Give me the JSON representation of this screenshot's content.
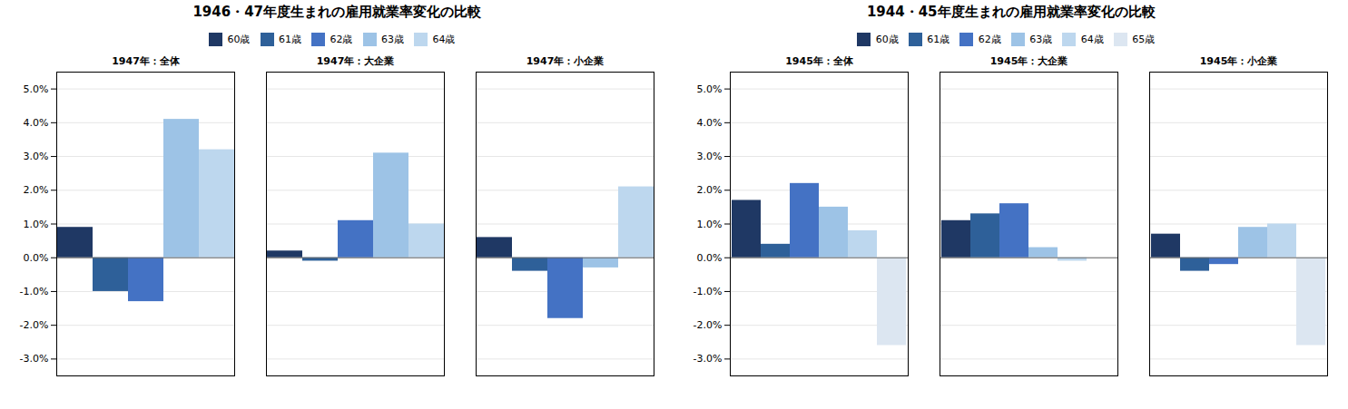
{
  "chart_data": [
    {
      "type": "bar",
      "title": "1946・47年度生まれの雇用就業率変化の比較",
      "categories": [
        "1947年：全体",
        "1947年：大企業",
        "1947年：小企業"
      ],
      "series": [
        {
          "name": "60歳",
          "color": "#1f3864",
          "values": [
            0.009,
            0.002,
            0.006
          ]
        },
        {
          "name": "61歳",
          "color": "#2e6099",
          "values": [
            -0.01,
            -0.001,
            -0.004
          ]
        },
        {
          "name": "62歳",
          "color": "#4472c4",
          "values": [
            -0.013,
            0.011,
            -0.018
          ]
        },
        {
          "name": "63歳",
          "color": "#9dc3e6",
          "values": [
            0.041,
            0.031,
            -0.003
          ]
        },
        {
          "name": "64歳",
          "color": "#bdd7ee",
          "values": [
            0.032,
            0.01,
            0.021
          ]
        }
      ],
      "ylim": [
        -0.035,
        0.055
      ],
      "yticks": [
        {
          "value": -0.03,
          "label": "-3.0%"
        },
        {
          "value": -0.02,
          "label": "-2.0%"
        },
        {
          "value": -0.01,
          "label": "-1.0%"
        },
        {
          "value": 0.0,
          "label": "0.0%"
        },
        {
          "value": 0.01,
          "label": "1.0%"
        },
        {
          "value": 0.02,
          "label": "2.0%"
        },
        {
          "value": 0.03,
          "label": "3.0%"
        },
        {
          "value": 0.04,
          "label": "4.0%"
        },
        {
          "value": 0.05,
          "label": "5.0%"
        }
      ],
      "grid": true,
      "legend": "top"
    },
    {
      "type": "bar",
      "title": "1944・45年度生まれの雇用就業率変化の比較",
      "categories": [
        "1945年：全体",
        "1945年：大企業",
        "1945年：小企業"
      ],
      "series": [
        {
          "name": "60歳",
          "color": "#1f3864",
          "values": [
            0.017,
            0.011,
            0.007
          ]
        },
        {
          "name": "61歳",
          "color": "#2e6099",
          "values": [
            0.004,
            0.013,
            -0.004
          ]
        },
        {
          "name": "62歳",
          "color": "#4472c4",
          "values": [
            0.022,
            0.016,
            -0.002
          ]
        },
        {
          "name": "63歳",
          "color": "#9dc3e6",
          "values": [
            0.015,
            0.003,
            0.009
          ]
        },
        {
          "name": "64歳",
          "color": "#bdd7ee",
          "values": [
            0.008,
            -0.001,
            0.01
          ]
        },
        {
          "name": "65歳",
          "color": "#dce6f1",
          "values": [
            -0.026,
            0.0,
            -0.026
          ]
        }
      ],
      "ylim": [
        -0.035,
        0.055
      ],
      "yticks": [
        {
          "value": -0.03,
          "label": "-3.0%"
        },
        {
          "value": -0.02,
          "label": "-2.0%"
        },
        {
          "value": -0.01,
          "label": "-1.0%"
        },
        {
          "value": 0.0,
          "label": "0.0%"
        },
        {
          "value": 0.01,
          "label": "1.0%"
        },
        {
          "value": 0.02,
          "label": "2.0%"
        },
        {
          "value": 0.03,
          "label": "3.0%"
        },
        {
          "value": 0.04,
          "label": "4.0%"
        },
        {
          "value": 0.05,
          "label": "5.0%"
        }
      ],
      "grid": true,
      "legend": "top"
    }
  ]
}
